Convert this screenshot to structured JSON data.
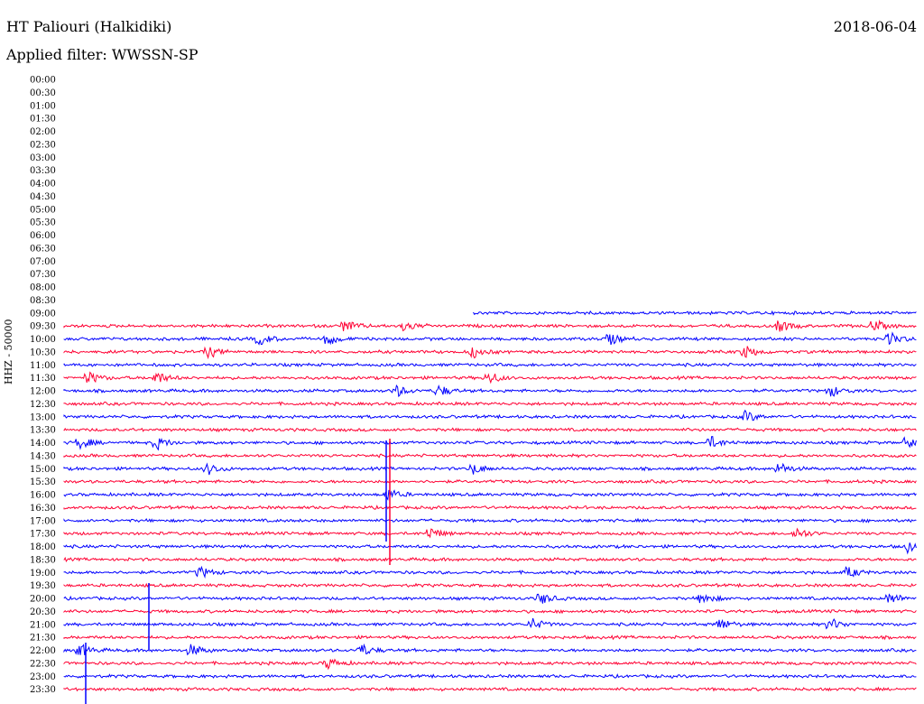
{
  "header": {
    "station": "HT Paliouri (Halkidiki)",
    "date": "2018-06-04",
    "filter": "Applied filter: WWSSN-SP"
  },
  "channel": "HHZ - 50000",
  "colors": {
    "odd_rows": "#ff0033",
    "even_rows": "#0000ff",
    "background": "#ffffff"
  },
  "chart_data": {
    "type": "line",
    "title": "HT Paliouri (Halkidiki)",
    "subtitle": "Applied filter: WWSSN-SP",
    "ylabel": "HHZ - 50000",
    "row_labels": [
      "00:00",
      "00:30",
      "01:00",
      "01:30",
      "02:00",
      "02:30",
      "03:00",
      "03:30",
      "04:00",
      "04:30",
      "05:00",
      "05:30",
      "06:00",
      "06:30",
      "07:00",
      "07:30",
      "08:00",
      "08:30",
      "09:00",
      "09:30",
      "10:00",
      "10:30",
      "11:00",
      "11:30",
      "12:00",
      "12:30",
      "13:00",
      "13:30",
      "14:00",
      "14:30",
      "15:00",
      "15:30",
      "16:00",
      "16:30",
      "17:00",
      "17:30",
      "18:00",
      "18:30",
      "19:00",
      "19:30",
      "20:00",
      "20:30",
      "21:00",
      "21:30",
      "22:00",
      "22:30",
      "23:00",
      "23:30"
    ],
    "rows_with_data_from": "09:00",
    "trace_start_in_first_row": 0.48,
    "row_minutes": 30,
    "row_colors": [
      "blue",
      "red"
    ],
    "notable_events": [
      {
        "row": "09:30",
        "pos": [
          0.33,
          0.4,
          0.84,
          0.95
        ]
      },
      {
        "row": "10:00",
        "pos": [
          0.23,
          0.31,
          0.64,
          0.97
        ]
      },
      {
        "row": "10:30",
        "pos": [
          0.17,
          0.48,
          0.8
        ]
      },
      {
        "row": "11:30",
        "pos": [
          0.03,
          0.11,
          0.5
        ]
      },
      {
        "row": "12:00",
        "pos": [
          0.39,
          0.44,
          0.9
        ]
      },
      {
        "row": "13:00",
        "pos": [
          0.8
        ]
      },
      {
        "row": "14:00",
        "pos": [
          0.02,
          0.11,
          0.76,
          0.99
        ]
      },
      {
        "row": "15:00",
        "pos": [
          0.17,
          0.48,
          0.84
        ]
      },
      {
        "row": "16:00",
        "pos": [
          0.38
        ]
      },
      {
        "row": "17:30",
        "pos": [
          0.43,
          0.86
        ]
      },
      {
        "row": "18:00",
        "pos": [
          0.99
        ]
      },
      {
        "row": "19:00",
        "pos": [
          0.16,
          0.92
        ]
      },
      {
        "row": "20:00",
        "pos": [
          0.56,
          0.75,
          0.97
        ]
      },
      {
        "row": "21:00",
        "pos": [
          0.55,
          0.77,
          0.9
        ]
      },
      {
        "row": "22:00",
        "pos": [
          0.02,
          0.15,
          0.35
        ]
      },
      {
        "row": "22:30",
        "pos": [
          0.31
        ]
      }
    ],
    "grid": false
  }
}
